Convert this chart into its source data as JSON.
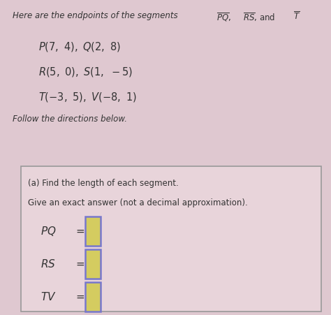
{
  "bg_color": "#dfc8d0",
  "box_bg_color": "#e8d4da",
  "text_color": "#333333",
  "fig_width": 4.74,
  "fig_height": 4.51,
  "dpi": 100,
  "title_text": "Here are the endpoints of the segments ",
  "point_lines": [
    "P(7, 4), Q(2, 8)",
    "R(5, 0), S(1, −5)",
    "T(−3, 5), V(−8, 1)"
  ],
  "follow_text": "Follow the directions below.",
  "box_instruction1": "(a) Find the length of each segment.",
  "box_instruction2": "Give an exact answer (not a decimal approximation).",
  "eq_labels": [
    "PQ",
    "RS",
    "TV"
  ],
  "input_box_fill": "#d4cc60",
  "input_box_border": "#7777cc"
}
